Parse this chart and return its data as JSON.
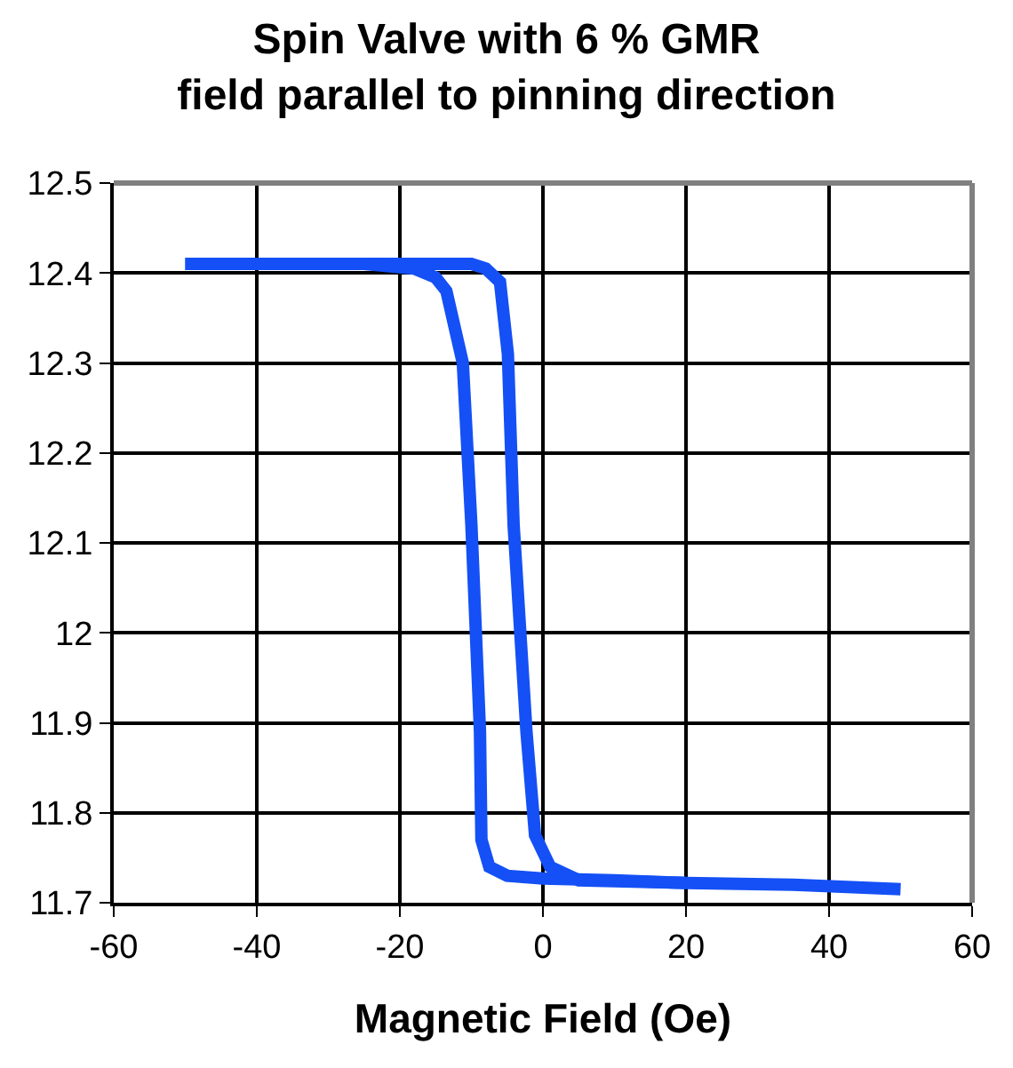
{
  "chart_data": {
    "type": "line",
    "title": "Spin Valve with 6 % GMR\nfield parallel to pinning direction",
    "xlabel": "Magnetic Field (Oe)",
    "series": [
      {
        "color": "#1450f5",
        "x": [
          -50,
          -20,
          -10,
          -8,
          -6,
          -4.9,
          -4.1,
          -2.3,
          -1.1,
          1,
          5,
          20,
          35,
          50
        ],
        "values": [
          12.41,
          12.41,
          12.41,
          12.405,
          12.39,
          12.31,
          12.12,
          11.89,
          11.775,
          11.74,
          11.725,
          11.722,
          11.72,
          11.715
        ]
      },
      {
        "color": "#1450f5",
        "x": [
          -50,
          -25,
          -18,
          -15,
          -13.5,
          -11.2,
          -10,
          -8.8,
          -8.6,
          -7.5,
          -5,
          0,
          10,
          20
        ],
        "values": [
          12.41,
          12.41,
          12.405,
          12.395,
          12.38,
          12.3,
          12.12,
          11.89,
          11.77,
          11.74,
          11.73,
          11.727,
          11.725,
          11.722
        ]
      }
    ],
    "xlim": [
      -60,
      60
    ],
    "xticks": [
      -60,
      -40,
      -20,
      0,
      20,
      40,
      60
    ],
    "ylim": [
      11.7,
      12.5
    ],
    "yticks": [
      11.7,
      11.8,
      11.9,
      12,
      12.1,
      12.2,
      12.3,
      12.4,
      12.5
    ],
    "grid": true,
    "marker": "none",
    "line_style": "solid"
  }
}
